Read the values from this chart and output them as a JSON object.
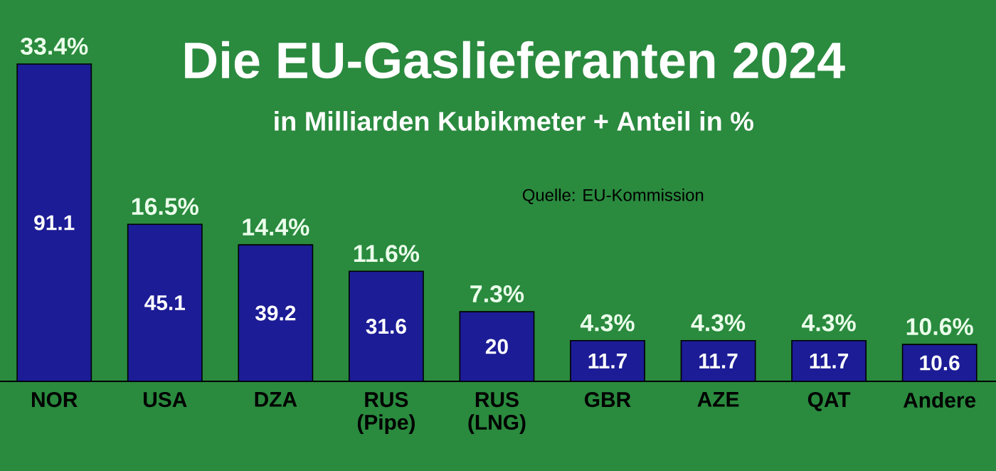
{
  "chart_data": {
    "type": "bar",
    "title": "Die EU-Gaslieferanten 2024",
    "subtitle": "in Milliarden Kubikmeter + Anteil in %",
    "categories": [
      "NOR",
      "USA",
      "DZA",
      "RUS (Pipe)",
      "RUS (LNG)",
      "GBR",
      "AZE",
      "QAT",
      "Andere"
    ],
    "values": [
      91.1,
      45.1,
      39.2,
      31.6,
      20,
      11.7,
      11.7,
      11.7,
      10.6
    ],
    "color": "#1c1c96",
    "data_labels": true,
    "annotations": [
      {
        "text": "33.4%",
        "x": "NOR",
        "y": 91.1
      },
      {
        "text": "16.5%",
        "x": "USA",
        "y": 45.1
      },
      {
        "text": "14.4%",
        "x": "DZA",
        "y": 39.2
      },
      {
        "text": "11.6%",
        "x": "RUS (Pipe)",
        "y": 31.6
      },
      {
        "text": "7.3%",
        "x": "RUS (LNG)",
        "y": 20
      },
      {
        "text": "4.3%",
        "x": "GBR",
        "y": 11.7
      },
      {
        "text": "4.3%",
        "x": "AZE",
        "y": 11.7
      },
      {
        "text": "4.3%",
        "x": "QAT",
        "y": 11.7
      },
      {
        "text": "10.6%",
        "x": "Andere",
        "y": 10.6
      },
      "Quelle: EU-Kommission"
    ]
  }
}
